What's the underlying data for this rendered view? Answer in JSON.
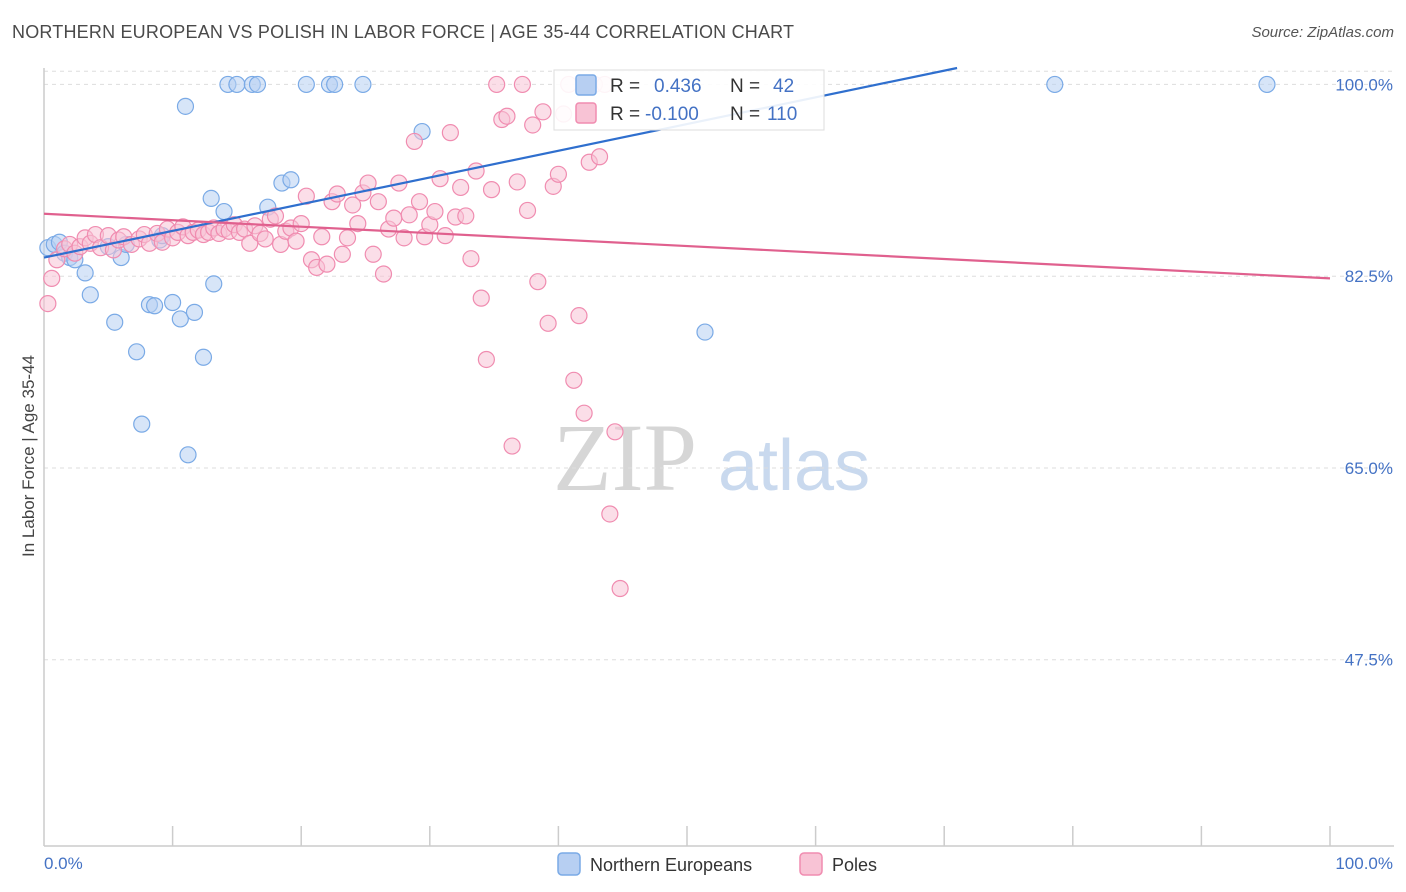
{
  "title": "NORTHERN EUROPEAN VS POLISH IN LABOR FORCE | AGE 35-44 CORRELATION CHART",
  "source": "Source: ZipAtlas.com",
  "watermark": {
    "zip": "ZIP",
    "atlas": "atlas"
  },
  "chart_data": {
    "type": "scatter",
    "title": "NORTHERN EUROPEAN VS POLISH IN LABOR FORCE | AGE 35-44 CORRELATION CHART",
    "xlabel": "",
    "ylabel": "In Labor Force | Age 35-44",
    "xlim": [
      0,
      100
    ],
    "ylim": [
      30.5,
      101.5
    ],
    "x_tick_labels": [
      "0.0%",
      "100.0%"
    ],
    "y_ticks": [
      100.0,
      82.5,
      65.0,
      47.5
    ],
    "y_tick_labels": [
      "100.0%",
      "82.5%",
      "65.0%",
      "47.5%"
    ],
    "grid": true,
    "legend_position": "bottom-center",
    "series": [
      {
        "name": "Northern Europeans",
        "color": "#7aaae6",
        "fill": "#b7cff2",
        "line_color": "#2f6fce",
        "R": "0.436",
        "N": "42",
        "trend": {
          "x": [
            0,
            71
          ],
          "y": [
            84.2,
            101.5
          ]
        },
        "x": [
          0.3,
          0.8,
          1.2,
          1.6,
          2.0,
          2.4,
          3.2,
          3.6,
          5.0,
          5.5,
          6.0,
          6.4,
          7.2,
          7.6,
          8.2,
          8.6,
          9.0,
          9.2,
          10.0,
          10.6,
          11.0,
          11.2,
          11.7,
          12.4,
          13.0,
          13.2,
          14.0,
          14.3,
          15.0,
          16.2,
          16.6,
          17.4,
          18.5,
          19.2,
          20.4,
          22.2,
          22.6,
          24.8,
          29.4,
          51.4,
          78.6,
          95.1
        ],
        "y": [
          85.1,
          85.4,
          85.6,
          84.6,
          84.2,
          84.0,
          82.8,
          80.8,
          85.2,
          78.3,
          84.2,
          85.4,
          75.6,
          69.0,
          79.9,
          79.8,
          85.8,
          86.2,
          80.1,
          78.6,
          98.0,
          66.2,
          79.2,
          75.1,
          89.6,
          81.8,
          88.4,
          100.0,
          100.0,
          100.0,
          100.0,
          88.8,
          91.0,
          91.3,
          100.0,
          100.0,
          100.0,
          100.0,
          95.7,
          77.4,
          100.0,
          100.0
        ]
      },
      {
        "name": "Poles",
        "color": "#f08cb0",
        "fill": "#f8c3d5",
        "line_color": "#e0608e",
        "R": "-0.100",
        "N": "110",
        "trend": {
          "x": [
            0,
            100
          ],
          "y": [
            88.2,
            82.3
          ]
        },
        "x": [
          0.3,
          0.6,
          1.0,
          1.6,
          2.0,
          2.4,
          2.8,
          3.2,
          3.6,
          4.0,
          4.4,
          5.0,
          5.4,
          5.8,
          6.2,
          6.8,
          7.4,
          7.8,
          8.2,
          8.8,
          9.2,
          9.6,
          10.0,
          10.4,
          10.8,
          11.2,
          11.6,
          12.0,
          12.4,
          12.8,
          13.2,
          13.6,
          14.0,
          14.4,
          14.8,
          15.2,
          15.6,
          16.0,
          16.4,
          16.8,
          17.2,
          17.6,
          18.0,
          18.4,
          18.8,
          19.2,
          19.6,
          20.0,
          20.4,
          20.8,
          21.2,
          21.6,
          22.0,
          22.4,
          22.8,
          23.2,
          23.6,
          24.0,
          24.4,
          24.8,
          25.2,
          25.6,
          26.0,
          26.4,
          26.8,
          27.2,
          27.6,
          28.0,
          28.4,
          28.8,
          29.2,
          29.6,
          30.0,
          30.4,
          30.8,
          31.2,
          31.6,
          32.0,
          32.4,
          32.8,
          33.2,
          33.6,
          34.0,
          34.4,
          34.8,
          35.2,
          35.6,
          36.0,
          36.4,
          36.8,
          37.2,
          37.6,
          38.0,
          38.4,
          38.8,
          39.2,
          39.6,
          40.0,
          40.4,
          40.8,
          41.2,
          41.6,
          42.0,
          42.4,
          42.8,
          43.2,
          43.6,
          44.0,
          44.4,
          44.8
        ],
        "y": [
          80.0,
          82.3,
          84.0,
          85.0,
          85.4,
          84.6,
          85.2,
          86.0,
          85.5,
          86.3,
          85.1,
          86.2,
          84.9,
          85.8,
          86.1,
          85.4,
          85.9,
          86.3,
          85.5,
          86.4,
          85.6,
          86.8,
          86.0,
          86.5,
          87.0,
          86.2,
          86.5,
          86.7,
          86.3,
          86.5,
          86.9,
          86.4,
          86.8,
          86.6,
          87.2,
          86.5,
          86.8,
          85.5,
          87.1,
          86.4,
          85.9,
          87.7,
          88.0,
          85.4,
          86.6,
          86.9,
          85.7,
          87.3,
          89.8,
          84.0,
          83.3,
          86.1,
          83.6,
          89.3,
          90.0,
          84.5,
          86.0,
          89.0,
          87.3,
          90.1,
          91.0,
          84.5,
          89.3,
          82.7,
          86.8,
          87.8,
          91.0,
          86.0,
          88.1,
          94.8,
          89.3,
          86.1,
          87.2,
          88.4,
          91.4,
          86.2,
          95.6,
          87.9,
          90.6,
          88.0,
          84.1,
          92.1,
          80.5,
          74.9,
          90.4,
          100.0,
          96.8,
          97.1,
          67.0,
          91.1,
          100.0,
          88.5,
          96.3,
          82.0,
          97.5,
          78.2,
          90.7,
          91.8,
          97.3,
          100.0,
          73.0,
          78.9,
          70.0,
          92.9,
          100.0,
          93.4,
          100.0,
          60.8,
          68.3,
          54.0
        ]
      }
    ]
  },
  "legend": {
    "items": [
      {
        "label": "Northern Europeans"
      },
      {
        "label": "Poles"
      }
    ]
  },
  "stats_box": {
    "row1": {
      "r_label": "R =",
      "r_value": "0.436",
      "n_label": "N =",
      "n_value": "42"
    },
    "row2": {
      "r_label": "R =",
      "r_value": "-0.100",
      "n_label": "N =",
      "n_value": "110"
    }
  }
}
